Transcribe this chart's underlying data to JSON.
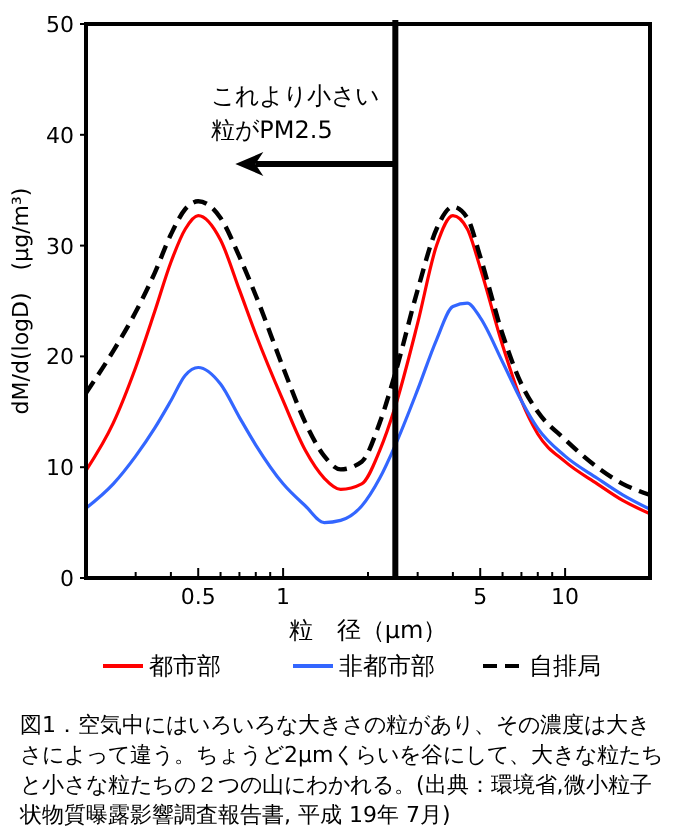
{
  "chart_data": {
    "type": "line",
    "xlabel": "粒　径（μm）",
    "ylabel": "dM/d(logD)　(μg/m³)",
    "log": "x",
    "xlim": [
      0.2,
      20
    ],
    "xticks": [
      {
        "value": 0.2,
        "label": null
      },
      {
        "value": 0.3,
        "label": null
      },
      {
        "value": 0.4,
        "label": null
      },
      0.5,
      {
        "value": 0.6,
        "label": null
      },
      {
        "value": 0.7,
        "label": null
      },
      {
        "value": 0.8,
        "label": null
      },
      {
        "value": 0.9,
        "label": null
      },
      1,
      {
        "value": 2,
        "label": null
      },
      {
        "value": 3,
        "label": null
      },
      {
        "value": 4,
        "label": null
      },
      5,
      {
        "value": 6,
        "label": null
      },
      {
        "value": 7,
        "label": null
      },
      {
        "value": 8,
        "label": null
      },
      {
        "value": 9,
        "label": null
      },
      10,
      {
        "value": 20,
        "label": null
      }
    ],
    "ylim": [
      0,
      50
    ],
    "yticks": [
      0,
      10,
      20,
      30,
      40,
      50
    ],
    "x": [
      0.2,
      0.25,
      0.3,
      0.35,
      0.4,
      0.45,
      0.5,
      0.6,
      0.7,
      0.8,
      1,
      1.2,
      1.4,
      1.6,
      1.9,
      2.2,
      2.5,
      3,
      3.5,
      4,
      4.5,
      5,
      6,
      7,
      8,
      10,
      13,
      16,
      20
    ],
    "series": [
      {
        "name": "都市部",
        "color": "#ff0000",
        "line_style": "solid",
        "values": [
          9.7,
          14,
          19,
          24,
          28.5,
          31.5,
          32.7,
          30.5,
          26,
          22,
          16,
          11.5,
          9,
          8,
          8.5,
          11.5,
          15.5,
          23,
          30,
          32.7,
          31.5,
          28,
          21,
          16,
          13,
          10.5,
          8.5,
          7,
          5.8
        ]
      },
      {
        "name": "非都市部",
        "color": "#3366ff",
        "line_style": "solid",
        "values": [
          6.3,
          8.5,
          11,
          13.5,
          16,
          18.3,
          19,
          17.5,
          14.5,
          12,
          8.5,
          6.5,
          5,
          5.2,
          6.5,
          9,
          12,
          17,
          21.5,
          24.5,
          24.8,
          23.5,
          19.5,
          16,
          13.5,
          11,
          9,
          7.5,
          6.2
        ]
      },
      {
        "name": "自排局",
        "color": "#000000",
        "line_style": "dashed",
        "values": [
          16.7,
          20.5,
          24,
          27.5,
          31,
          33.3,
          34,
          32.5,
          29,
          25.5,
          19,
          14,
          11,
          9.8,
          10.5,
          14,
          18.5,
          26,
          31.5,
          33.5,
          32.5,
          29,
          22,
          17.5,
          15,
          12.5,
          10,
          8.5,
          7.5
        ]
      }
    ],
    "ref_lines": [
      {
        "axis": "x",
        "value": 2.5,
        "label": "これより小さい粒がPM2.5",
        "color": "#000000"
      }
    ],
    "grid": false,
    "legend": "bottom",
    "marker": "none",
    "annotations": [
      "図1．空気中にはいろいろな大きさの粒があり、その濃度は大きさによって違う。ちょうど2μmくらいを谷にして、大きな粒たちと小さな粒たちの２つの山にわかれる。(出典：環境省,微小粒子状物質曝露影響調査報告書, 平成 19年 7月)"
    ]
  }
}
